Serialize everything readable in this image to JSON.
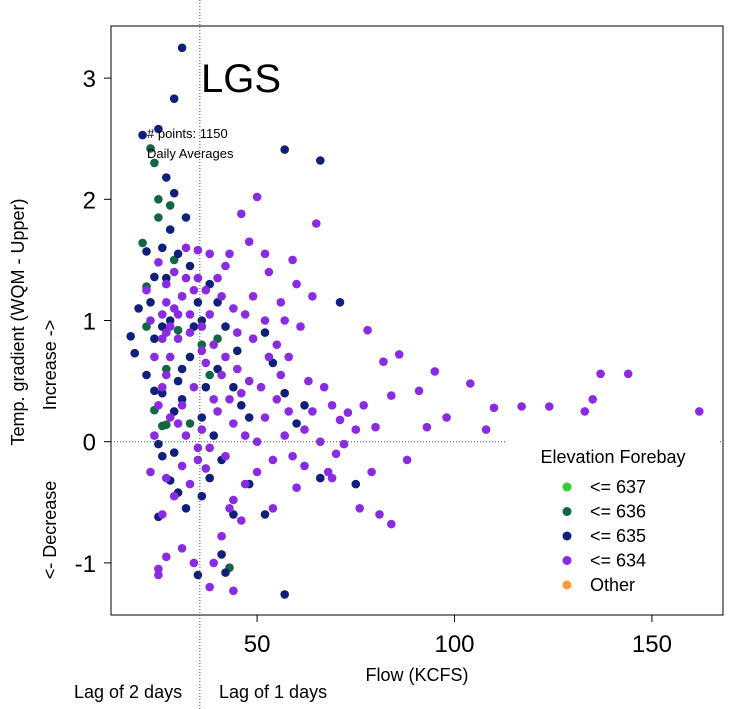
{
  "chart_data": {
    "type": "scatter",
    "title": "LGS",
    "annotations": [
      "# points: 1150",
      "Daily Averages"
    ],
    "xlabel": "Flow (KCFS)",
    "ylabel": "Temp. gradient (WQM - Upper)",
    "ylabel_increase": "Increase ->",
    "ylabel_decrease": "<- Decrease",
    "lag_labels": [
      "Lag of 2 days",
      "Lag of 1 days"
    ],
    "lag_line_x": 35.5,
    "xlim": [
      13,
      168
    ],
    "ylim": [
      -1.43,
      3.43
    ],
    "x_ticks": [
      50,
      100,
      150
    ],
    "y_ticks": [
      -1,
      0,
      1,
      2,
      3
    ],
    "reference_y": 0,
    "legend": {
      "title": "Elevation Forebay",
      "position": "bottom-right",
      "entries": [
        {
          "label": "<= 637",
          "color": "#33cc33"
        },
        {
          "label": "<= 636",
          "color": "#116644"
        },
        {
          "label": "<= 635",
          "color": "#0f1f7a"
        },
        {
          "label": "<= 634",
          "color": "#8a2be2"
        },
        {
          "label": "Other",
          "color": "#ff9933"
        }
      ]
    },
    "series": [
      {
        "name": "<= 636",
        "color": "#116644",
        "points": [
          [
            21,
            1.64
          ],
          [
            22,
            1.28
          ],
          [
            23,
            2.42
          ],
          [
            24,
            2.3
          ],
          [
            25,
            1.85
          ],
          [
            24,
            0.26
          ],
          [
            26,
            0.13
          ],
          [
            27,
            0.14
          ],
          [
            28,
            1.95
          ],
          [
            29,
            1.5
          ],
          [
            30,
            0.92
          ],
          [
            31,
            1.2
          ],
          [
            43,
            -1.04
          ],
          [
            36,
            0.8
          ],
          [
            25,
            2.0
          ],
          [
            22,
            0.95
          ],
          [
            33,
            0.15
          ],
          [
            38,
            0.55
          ],
          [
            27,
            0.6
          ],
          [
            40,
            0.85
          ]
        ]
      },
      {
        "name": "<= 635",
        "color": "#0f1f7a",
        "points": [
          [
            31,
            3.25
          ],
          [
            29,
            2.83
          ],
          [
            21,
            2.53
          ],
          [
            25,
            2.58
          ],
          [
            57,
            2.41
          ],
          [
            66,
            2.32
          ],
          [
            27,
            2.18
          ],
          [
            29,
            2.05
          ],
          [
            22,
            1.57
          ],
          [
            24,
            1.36
          ],
          [
            20,
            1.1
          ],
          [
            18,
            0.87
          ],
          [
            19,
            0.73
          ],
          [
            22,
            0.55
          ],
          [
            24,
            0.42
          ],
          [
            26,
            0.4
          ],
          [
            25,
            -0.02
          ],
          [
            26,
            -0.12
          ],
          [
            29,
            -0.09
          ],
          [
            28,
            -0.32
          ],
          [
            30,
            -0.42
          ],
          [
            32,
            -0.55
          ],
          [
            25,
            -0.62
          ],
          [
            35,
            -1.1
          ],
          [
            41,
            -0.93
          ],
          [
            42,
            -1.08
          ],
          [
            44,
            -0.6
          ],
          [
            52,
            -0.6
          ],
          [
            57,
            -1.26
          ],
          [
            48,
            -0.35
          ],
          [
            66,
            -0.3
          ],
          [
            71,
            1.15
          ],
          [
            62,
            0.3
          ],
          [
            57,
            0.4
          ],
          [
            45,
            0.75
          ],
          [
            40,
            0.6
          ],
          [
            38,
            1.3
          ],
          [
            36,
            1.0
          ],
          [
            33,
            0.7
          ],
          [
            31,
            0.35
          ],
          [
            34,
            0.95
          ],
          [
            30,
            1.55
          ],
          [
            28,
            1.75
          ],
          [
            26,
            0.95
          ],
          [
            23,
            1.15
          ],
          [
            27,
            1.35
          ],
          [
            32,
            1.85
          ],
          [
            35,
            1.15
          ],
          [
            37,
            0.45
          ],
          [
            39,
            0.05
          ],
          [
            41,
            -0.15
          ],
          [
            36,
            -0.45
          ],
          [
            48,
            0.2
          ],
          [
            54,
            0.65
          ],
          [
            60,
            0.15
          ],
          [
            75,
            -0.35
          ],
          [
            44,
            0.45
          ],
          [
            42,
            0.95
          ],
          [
            29,
            0.25
          ],
          [
            24,
            0.85
          ],
          [
            31,
            0.6
          ],
          [
            33,
            1.45
          ],
          [
            26,
            1.6
          ],
          [
            30,
            0.5
          ],
          [
            28,
            1.0
          ],
          [
            36,
            0.2
          ],
          [
            40,
            1.15
          ],
          [
            46,
            0.3
          ],
          [
            38,
            -0.3
          ],
          [
            52,
            0.9
          ]
        ]
      },
      {
        "name": "<= 634",
        "color": "#8a2be2",
        "points": [
          [
            162,
            0.25
          ],
          [
            144,
            0.56
          ],
          [
            137,
            0.56
          ],
          [
            135,
            0.35
          ],
          [
            133,
            0.25
          ],
          [
            124,
            0.29
          ],
          [
            117,
            0.29
          ],
          [
            110,
            0.28
          ],
          [
            108,
            0.1
          ],
          [
            104,
            0.48
          ],
          [
            98,
            0.2
          ],
          [
            95,
            0.58
          ],
          [
            93,
            0.12
          ],
          [
            91,
            0.42
          ],
          [
            86,
            0.72
          ],
          [
            84,
            0.38
          ],
          [
            82,
            0.66
          ],
          [
            80,
            0.12
          ],
          [
            78,
            0.92
          ],
          [
            77,
            0.3
          ],
          [
            75,
            0.1
          ],
          [
            73,
            0.24
          ],
          [
            72,
            -0.02
          ],
          [
            79,
            -0.25
          ],
          [
            84,
            -0.68
          ],
          [
            88,
            -0.15
          ],
          [
            81,
            -0.6
          ],
          [
            76,
            -0.55
          ],
          [
            68,
            -0.25
          ],
          [
            60,
            -0.38
          ],
          [
            54,
            -0.55
          ],
          [
            50,
            -0.25
          ],
          [
            46,
            -0.65
          ],
          [
            44,
            -0.48
          ],
          [
            41,
            -0.78
          ],
          [
            39,
            -1.0
          ],
          [
            38,
            -1.2
          ],
          [
            44,
            -1.23
          ],
          [
            34,
            -1.0
          ],
          [
            31,
            -0.88
          ],
          [
            27,
            -0.95
          ],
          [
            25,
            -1.05
          ],
          [
            25,
            -1.1
          ],
          [
            26,
            -0.6
          ],
          [
            29,
            -0.45
          ],
          [
            33,
            -0.35
          ],
          [
            37,
            -0.22
          ],
          [
            42,
            -0.12
          ],
          [
            47,
            0.05
          ],
          [
            52,
            0.2
          ],
          [
            56,
            0.55
          ],
          [
            61,
            0.95
          ],
          [
            64,
            1.2
          ],
          [
            65,
            1.8
          ],
          [
            59,
            1.5
          ],
          [
            53,
            1.4
          ],
          [
            50,
            2.02
          ],
          [
            46,
            1.88
          ],
          [
            43,
            1.55
          ],
          [
            40,
            1.35
          ],
          [
            37,
            1.25
          ],
          [
            35,
            1.58
          ],
          [
            32,
            1.6
          ],
          [
            29,
            1.4
          ],
          [
            27,
            1.15
          ],
          [
            26,
            0.85
          ],
          [
            28,
            0.7
          ],
          [
            30,
            0.85
          ],
          [
            33,
            0.9
          ],
          [
            36,
            0.95
          ],
          [
            39,
            0.8
          ],
          [
            42,
            0.7
          ],
          [
            45,
            0.6
          ],
          [
            48,
            0.5
          ],
          [
            51,
            0.45
          ],
          [
            55,
            0.35
          ],
          [
            58,
            0.25
          ],
          [
            62,
            0.1
          ],
          [
            66,
            0.0
          ],
          [
            70,
            -0.1
          ],
          [
            45,
            0.9
          ],
          [
            47,
            1.05
          ],
          [
            49,
            1.2
          ],
          [
            52,
            1.0
          ],
          [
            55,
            0.8
          ],
          [
            58,
            0.7
          ],
          [
            63,
            0.5
          ],
          [
            67,
            0.45
          ],
          [
            69,
            0.3
          ],
          [
            71,
            0.18
          ],
          [
            34,
            0.45
          ],
          [
            31,
            0.3
          ],
          [
            36,
            0.1
          ],
          [
            38,
            -0.05
          ],
          [
            40,
            0.25
          ],
          [
            43,
            0.35
          ],
          [
            30,
            1.05
          ],
          [
            27,
            1.3
          ],
          [
            25,
            1.48
          ],
          [
            23,
            1.0
          ],
          [
            24,
            0.7
          ],
          [
            26,
            0.45
          ],
          [
            28,
            0.2
          ],
          [
            32,
            0.05
          ],
          [
            35,
            -0.15
          ],
          [
            44,
            0.15
          ],
          [
            46,
            0.4
          ],
          [
            53,
            0.7
          ],
          [
            57,
            1.0
          ],
          [
            60,
            1.3
          ],
          [
            48,
            1.65
          ],
          [
            42,
            1.45
          ],
          [
            38,
            1.05
          ],
          [
            34,
            1.25
          ],
          [
            37,
            0.65
          ],
          [
            41,
            0.55
          ],
          [
            59,
            -0.12
          ],
          [
            64,
            0.25
          ],
          [
            69,
            -0.3
          ],
          [
            30,
            0.15
          ],
          [
            22,
            1.25
          ],
          [
            50,
            0.0
          ],
          [
            54,
            -0.15
          ],
          [
            57,
            0.05
          ],
          [
            62,
            -0.2
          ],
          [
            47,
            -0.35
          ],
          [
            43,
            -0.55
          ],
          [
            52,
            1.55
          ],
          [
            56,
            1.15
          ],
          [
            39,
            0.35
          ],
          [
            36,
            0.75
          ],
          [
            33,
            1.05
          ],
          [
            31,
            1.2
          ],
          [
            28,
            0.95
          ],
          [
            27,
            0.55
          ],
          [
            25,
            0.3
          ],
          [
            24,
            0.05
          ],
          [
            23,
            -0.25
          ],
          [
            27,
            -0.3
          ],
          [
            31,
            -0.2
          ],
          [
            35,
            -0.05
          ],
          [
            49,
            0.85
          ],
          [
            44,
            1.1
          ],
          [
            41,
            1.2
          ],
          [
            38,
            1.55
          ],
          [
            35,
            1.35
          ],
          [
            32,
            1.35
          ],
          [
            29,
            1.1
          ],
          [
            27,
            0.9
          ],
          [
            26,
            1.05
          ]
        ]
      }
    ]
  }
}
